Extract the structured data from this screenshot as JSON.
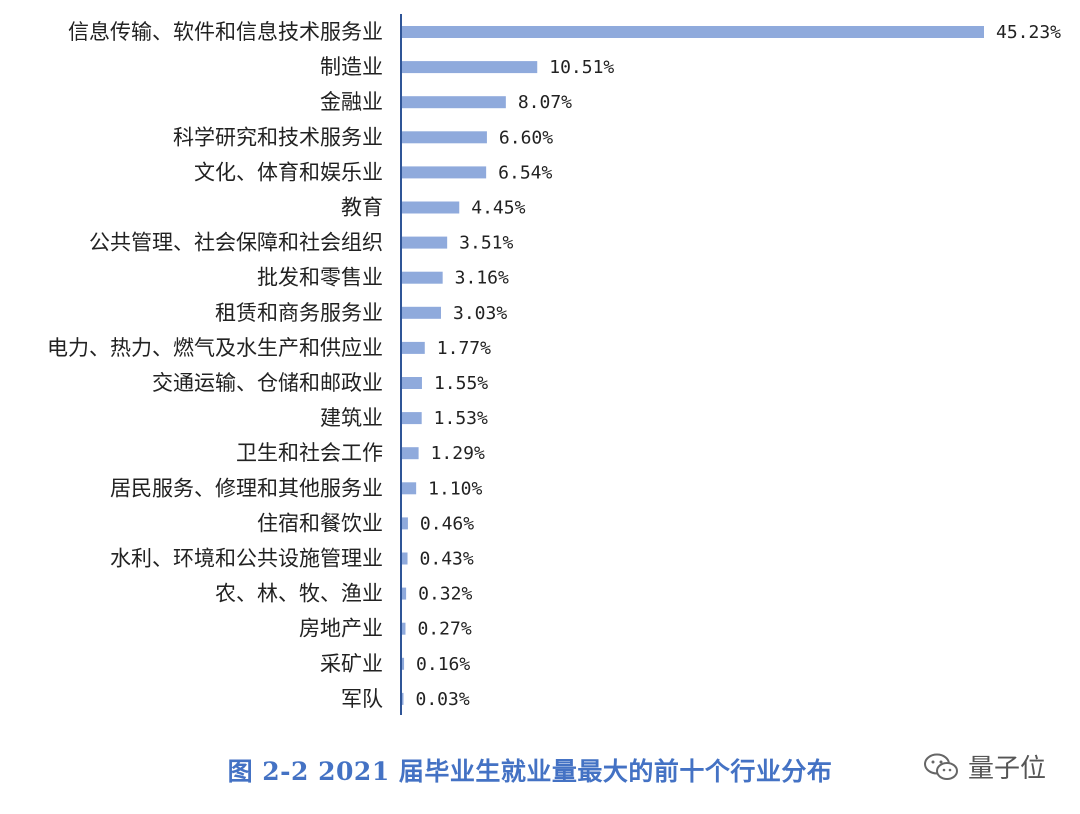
{
  "chart_data": {
    "type": "bar",
    "orientation": "horizontal",
    "categories": [
      "信息传输、软件和信息技术服务业",
      "制造业",
      "金融业",
      "科学研究和技术服务业",
      "文化、体育和娱乐业",
      "教育",
      "公共管理、社会保障和社会组织",
      "批发和零售业",
      "租赁和商务服务业",
      "电力、热力、燃气及水生产和供应业",
      "交通运输、仓储和邮政业",
      "建筑业",
      "卫生和社会工作",
      "居民服务、修理和其他服务业",
      "住宿和餐饮业",
      "水利、环境和公共设施管理业",
      "农、林、牧、渔业",
      "房地产业",
      "采矿业",
      "军队"
    ],
    "values": [
      45.23,
      10.51,
      8.07,
      6.6,
      6.54,
      4.45,
      3.51,
      3.16,
      3.03,
      1.77,
      1.55,
      1.53,
      1.29,
      1.1,
      0.46,
      0.43,
      0.32,
      0.27,
      0.16,
      0.03
    ],
    "value_labels": [
      "45.23%",
      "10.51%",
      "8.07%",
      "6.60%",
      "6.54%",
      "4.45%",
      "3.51%",
      "3.16%",
      "3.03%",
      "1.77%",
      "1.55%",
      "1.53%",
      "1.29%",
      "1.10%",
      "0.46%",
      "0.43%",
      "0.32%",
      "0.27%",
      "0.16%",
      "0.03%"
    ],
    "title": "图 2-2 2021 届毕业生就业量最大的前十个行业分布",
    "xlim": [
      0,
      45.23
    ],
    "grid": false,
    "bar_color": "#8faadc",
    "axis_color": "#2f5597"
  },
  "caption": "图 2-2 2021 届毕业生就业量最大的前十个行业分布",
  "watermark": {
    "text": "量子位",
    "icon": "wechat-icon"
  },
  "colors": {
    "caption": "#4472c4"
  }
}
